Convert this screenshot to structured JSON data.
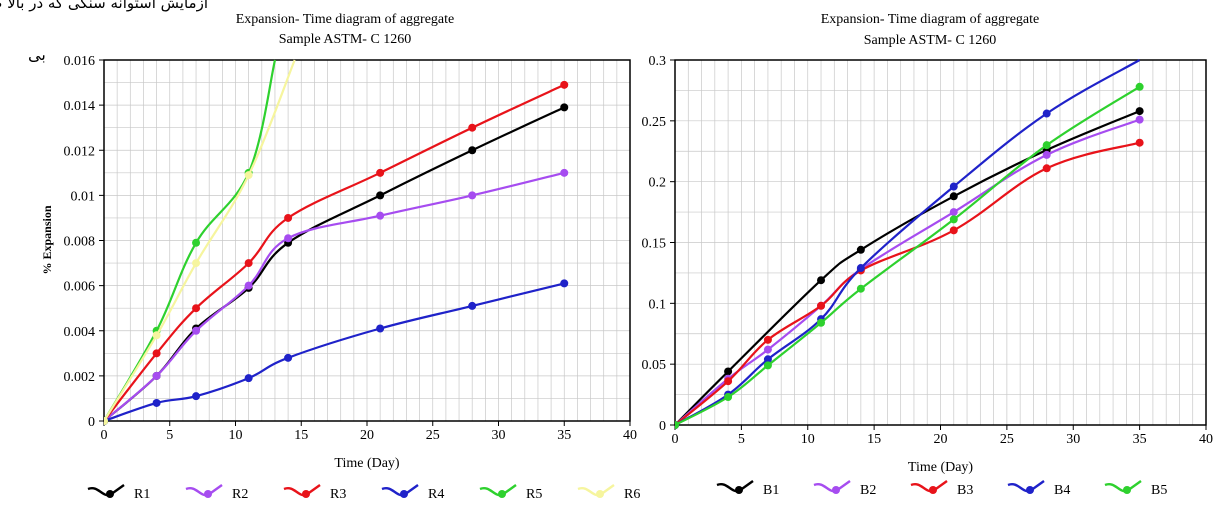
{
  "page": {
    "top_text": "آزمایش استوانه سنگی که در بالا صورت گرفت می‌توان گفت",
    "side_text": "بی"
  },
  "chart_data": [
    {
      "type": "line",
      "title": "Expansion- Time diagram of aggregate",
      "subtitle": "Sample ASTM- C 1260",
      "xlabel": "Time (Day)",
      "ylabel": "% Expansion",
      "xlim": [
        0,
        40
      ],
      "ylim": [
        0,
        0.016
      ],
      "xticks": [
        "0",
        "5",
        "10",
        "15",
        "20",
        "25",
        "30",
        "35",
        "40"
      ],
      "yticks": [
        "0",
        "0.002",
        "0.004",
        "0.006",
        "0.008",
        "0.01",
        "0.012",
        "0.014",
        "0.016"
      ],
      "grid": true,
      "legend_position": "bottom",
      "series": [
        {
          "name": "R1",
          "color": "#000000",
          "x": [
            0,
            4,
            7,
            11,
            14,
            21,
            28,
            35
          ],
          "y": [
            0,
            0.002,
            0.0041,
            0.0059,
            0.0079,
            0.01,
            0.012,
            0.0139
          ]
        },
        {
          "name": "R2",
          "color": "#a64cf0",
          "x": [
            0,
            4,
            7,
            11,
            14,
            21,
            28,
            35
          ],
          "y": [
            0,
            0.002,
            0.004,
            0.006,
            0.0081,
            0.0091,
            0.01,
            0.011
          ]
        },
        {
          "name": "R3",
          "color": "#e8131a",
          "x": [
            0,
            4,
            7,
            11,
            14,
            21,
            28,
            35
          ],
          "y": [
            0,
            0.003,
            0.005,
            0.007,
            0.009,
            0.011,
            0.013,
            0.0149
          ]
        },
        {
          "name": "R4",
          "color": "#1f22c9",
          "x": [
            0,
            4,
            7,
            11,
            14,
            21,
            28,
            35
          ],
          "y": [
            0,
            0.0008,
            0.0011,
            0.0019,
            0.0028,
            0.0041,
            0.0051,
            0.0061
          ]
        },
        {
          "name": "R5",
          "color": "#2ed12e",
          "x": [
            0,
            4,
            7,
            11,
            13
          ],
          "y": [
            0,
            0.004,
            0.0079,
            0.011,
            0.016
          ]
        },
        {
          "name": "R6",
          "color": "#f6f59e",
          "x": [
            0,
            4,
            7,
            11,
            14.5
          ],
          "y": [
            0,
            0.0038,
            0.007,
            0.0109,
            0.016
          ]
        }
      ]
    },
    {
      "type": "line",
      "title": "Expansion- Time diagram of aggregate",
      "subtitle": "Sample ASTM- C 1260",
      "xlabel": "Time (Day)",
      "ylabel": "",
      "xlim": [
        0,
        40
      ],
      "ylim": [
        0,
        0.3
      ],
      "xticks": [
        "0",
        "5",
        "10",
        "15",
        "20",
        "25",
        "30",
        "35",
        "40"
      ],
      "yticks": [
        "0",
        "0.05",
        "0.1",
        "0.15",
        "0.2",
        "0.25",
        "0.3"
      ],
      "grid": true,
      "legend_position": "bottom",
      "series": [
        {
          "name": "B1",
          "color": "#000000",
          "x": [
            0,
            4,
            11,
            14,
            21,
            28,
            35
          ],
          "y": [
            0,
            0.044,
            0.119,
            0.144,
            0.188,
            0.226,
            0.258
          ]
        },
        {
          "name": "B2",
          "color": "#a64cf0",
          "x": [
            0,
            4,
            7,
            11,
            14,
            21,
            28,
            35
          ],
          "y": [
            0,
            0.038,
            0.062,
            0.098,
            0.128,
            0.175,
            0.222,
            0.251
          ]
        },
        {
          "name": "B3",
          "color": "#e8131a",
          "x": [
            0,
            4,
            7,
            11,
            14,
            21,
            28,
            35
          ],
          "y": [
            0,
            0.036,
            0.07,
            0.098,
            0.127,
            0.16,
            0.211,
            0.232
          ]
        },
        {
          "name": "B4",
          "color": "#1f22c9",
          "x": [
            0,
            4,
            7,
            11,
            14,
            21,
            28,
            35
          ],
          "y": [
            0,
            0.025,
            0.054,
            0.087,
            0.129,
            0.196,
            0.256,
            0.3
          ]
        },
        {
          "name": "B5",
          "color": "#2ed12e",
          "x": [
            0,
            4,
            7,
            11,
            14,
            21,
            28,
            35
          ],
          "y": [
            0,
            0.023,
            0.049,
            0.084,
            0.112,
            0.169,
            0.23,
            0.278
          ]
        }
      ]
    }
  ]
}
